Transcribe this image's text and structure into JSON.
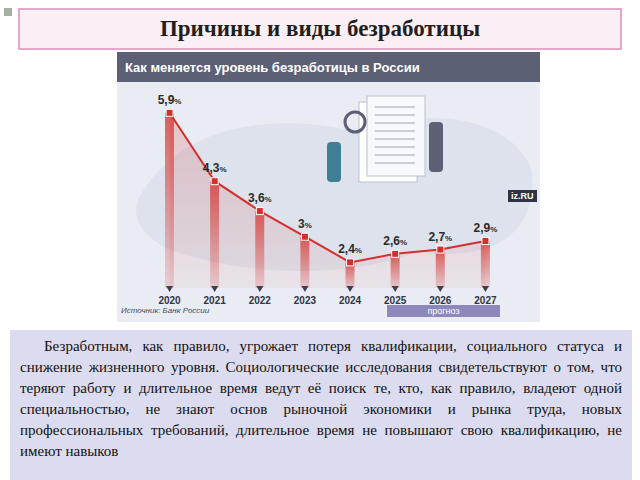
{
  "slide": {
    "title": "Причины и виды безработицы",
    "text": "Безработным, как правило, угрожает потеря квалификации, социального статуса и снижение жизненного уровня. Социологические исследования свидетельствуют о том, что теряют работу и длительное время ведут её поиск те, кто, как правило, владеют одной специальностью, не знают основ рыночной экономики и рынка труда, новых профессиональных требований, длительное время не повышают свою квалификацию, не имеют навыков"
  },
  "chart_data": {
    "type": "line",
    "title": "Как меняется уровень безработицы в России",
    "source": "Источник: Банк России",
    "annotations": [
      "прогноз",
      "iz.RU"
    ],
    "categories": [
      "2020",
      "2021",
      "2022",
      "2023",
      "2024",
      "2025",
      "2026",
      "2027"
    ],
    "values": [
      5.9,
      4.3,
      3.6,
      3,
      2.4,
      2.6,
      2.7,
      2.9
    ],
    "value_labels": [
      "5,9%",
      "4,3%",
      "3,6%",
      "3%",
      "2,4%",
      "2,6%",
      "2,7%",
      "2,9%"
    ],
    "data_labels": true,
    "color": "#d42f2a",
    "ylim": [
      1.8,
      6.2
    ],
    "tick_labels": "x",
    "marker": "square",
    "grid": false
  }
}
